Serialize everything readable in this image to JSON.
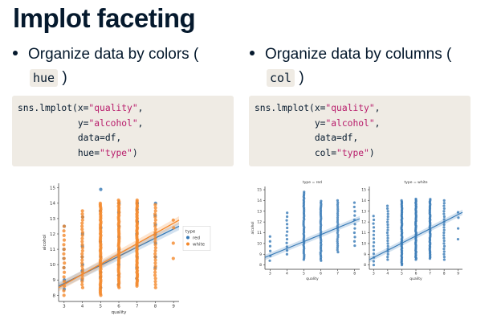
{
  "slide": {
    "title": "lmplot faceting",
    "left": {
      "bullet_text": "Organize data by colors (",
      "inline_code": "hue",
      "close_paren": ")",
      "code": {
        "fn": "sns.lmplot(x=",
        "x_val": "\"quality\"",
        "y_key": "y=",
        "y_val": "\"alcohol\"",
        "data": "data=df,",
        "hue_key": "hue=",
        "hue_val": "\"type\"",
        "close": ")"
      }
    },
    "right": {
      "bullet_text": "Organize data by columns (",
      "inline_code": "col",
      "close_paren": ")",
      "code": {
        "fn": "sns.lmplot(x=",
        "x_val": "\"quality\"",
        "y_key": "y=",
        "y_val": "\"alcohol\"",
        "data": "data=df,",
        "col_key": "col=",
        "col_val": "\"type\"",
        "close": ")"
      }
    }
  },
  "colors": {
    "blue": "#3478b5",
    "orange": "#f4882b",
    "code_bg": "#efebe4",
    "string": "#b81c6b"
  },
  "chart_data": [
    {
      "type": "scatter",
      "title": "",
      "xlabel": "quality",
      "ylabel": "alcohol",
      "xlim": [
        2.7,
        9.3
      ],
      "ylim": [
        7.6,
        15.3
      ],
      "xticks": [
        3,
        4,
        5,
        6,
        7,
        8,
        9
      ],
      "yticks": [
        8,
        9,
        10,
        11,
        12,
        13,
        14,
        15
      ],
      "legend": {
        "title": "type",
        "placement": "center-right"
      },
      "series": [
        {
          "name": "red",
          "color": "#3478b5",
          "points": [
            [
              3,
              8.4
            ],
            [
              3,
              9.0
            ],
            [
              3,
              9.8
            ],
            [
              3,
              10.4
            ],
            [
              3,
              11.0
            ],
            [
              3,
              12.5
            ],
            [
              4,
              9.0
            ],
            [
              4,
              9.6
            ],
            [
              4,
              10.0
            ],
            [
              4,
              10.5
            ],
            [
              4,
              11.2
            ],
            [
              4,
              12.0
            ],
            [
              4,
              13.1
            ],
            [
              5,
              8.5
            ],
            [
              5,
              9.2
            ],
            [
              5,
              9.5
            ],
            [
              5,
              10.0
            ],
            [
              5,
              10.5
            ],
            [
              5,
              11.5
            ],
            [
              5,
              12.4
            ],
            [
              5,
              13.5
            ],
            [
              5,
              14.9
            ],
            [
              6,
              8.7
            ],
            [
              6,
              9.3
            ],
            [
              6,
              10.0
            ],
            [
              6,
              10.5
            ],
            [
              6,
              11.0
            ],
            [
              6,
              11.8
            ],
            [
              6,
              12.5
            ],
            [
              6,
              13.4
            ],
            [
              6,
              14.0
            ],
            [
              7,
              9.1
            ],
            [
              7,
              9.8
            ],
            [
              7,
              10.5
            ],
            [
              7,
              11.2
            ],
            [
              7,
              12.0
            ],
            [
              7,
              12.8
            ],
            [
              7,
              13.6
            ],
            [
              7,
              14.0
            ],
            [
              8,
              9.8
            ],
            [
              8,
              10.5
            ],
            [
              8,
              11.4
            ],
            [
              8,
              12.0
            ],
            [
              8,
              12.6
            ],
            [
              8,
              13.2
            ],
            [
              8,
              14.0
            ]
          ],
          "fit": [
            [
              2.7,
              8.6
            ],
            [
              9.3,
              12.5
            ]
          ]
        },
        {
          "name": "white",
          "color": "#f4882b",
          "points_per_x": [
            {
              "x": 3,
              "ymin": 8.0,
              "ymax": 12.6,
              "step": 0.3
            },
            {
              "x": 4,
              "ymin": 8.5,
              "ymax": 13.6,
              "step": 0.2
            },
            {
              "x": 5,
              "ymin": 8.0,
              "ymax": 14.0,
              "step": 0.1
            },
            {
              "x": 6,
              "ymin": 8.5,
              "ymax": 14.2,
              "step": 0.1
            },
            {
              "x": 7,
              "ymin": 8.6,
              "ymax": 14.2,
              "step": 0.1
            },
            {
              "x": 8,
              "ymin": 8.5,
              "ymax": 14.0,
              "step": 0.2
            }
          ],
          "points": [
            [
              9,
              10.4
            ],
            [
              9,
              11.4
            ],
            [
              9,
              12.4
            ],
            [
              9,
              12.9
            ]
          ],
          "fit": [
            [
              2.7,
              8.5
            ],
            [
              9.3,
              12.9
            ]
          ]
        }
      ]
    },
    {
      "type": "scatter",
      "title": "type = red",
      "xlabel": "quality",
      "ylabel": "alcohol",
      "xlim": [
        2.7,
        8.3
      ],
      "ylim": [
        7.6,
        15.3
      ],
      "xticks": [
        3,
        4,
        5,
        6,
        7,
        8
      ],
      "yticks": [
        8,
        9,
        10,
        11,
        12,
        13,
        14,
        15
      ],
      "series": [
        {
          "name": "red",
          "color": "#3478b5",
          "points_per_x": [
            {
              "x": 3,
              "ymin": 8.4,
              "ymax": 11.0,
              "step": 0.45
            },
            {
              "x": 4,
              "ymin": 9.0,
              "ymax": 13.1,
              "step": 0.35
            },
            {
              "x": 5,
              "ymin": 8.5,
              "ymax": 14.9,
              "step": 0.15
            },
            {
              "x": 6,
              "ymin": 8.4,
              "ymax": 14.0,
              "step": 0.15
            },
            {
              "x": 7,
              "ymin": 9.2,
              "ymax": 14.0,
              "step": 0.2
            },
            {
              "x": 8,
              "ymin": 9.8,
              "ymax": 14.0,
              "step": 0.4
            }
          ],
          "fit": [
            [
              2.7,
              8.7
            ],
            [
              8.3,
              12.3
            ]
          ]
        }
      ]
    },
    {
      "type": "scatter",
      "title": "type = white",
      "xlabel": "quality",
      "ylabel": "",
      "xlim": [
        2.7,
        9.3
      ],
      "ylim": [
        7.6,
        15.3
      ],
      "xticks": [
        3,
        4,
        5,
        6,
        7,
        8,
        9
      ],
      "yticks": [
        8,
        9,
        10,
        11,
        12,
        13,
        14,
        15
      ],
      "series": [
        {
          "name": "white",
          "color": "#3478b5",
          "points_per_x": [
            {
              "x": 3,
              "ymin": 8.0,
              "ymax": 12.6,
              "step": 0.35
            },
            {
              "x": 4,
              "ymin": 8.5,
              "ymax": 13.6,
              "step": 0.25
            },
            {
              "x": 5,
              "ymin": 8.0,
              "ymax": 14.0,
              "step": 0.12
            },
            {
              "x": 6,
              "ymin": 8.5,
              "ymax": 14.2,
              "step": 0.12
            },
            {
              "x": 7,
              "ymin": 8.6,
              "ymax": 14.2,
              "step": 0.12
            },
            {
              "x": 8,
              "ymin": 8.5,
              "ymax": 14.0,
              "step": 0.25
            }
          ],
          "points": [
            [
              9,
              10.4
            ],
            [
              9,
              11.4
            ],
            [
              9,
              12.4
            ],
            [
              9,
              12.9
            ]
          ],
          "fit": [
            [
              2.7,
              8.5
            ],
            [
              9.3,
              12.9
            ]
          ]
        }
      ]
    }
  ]
}
